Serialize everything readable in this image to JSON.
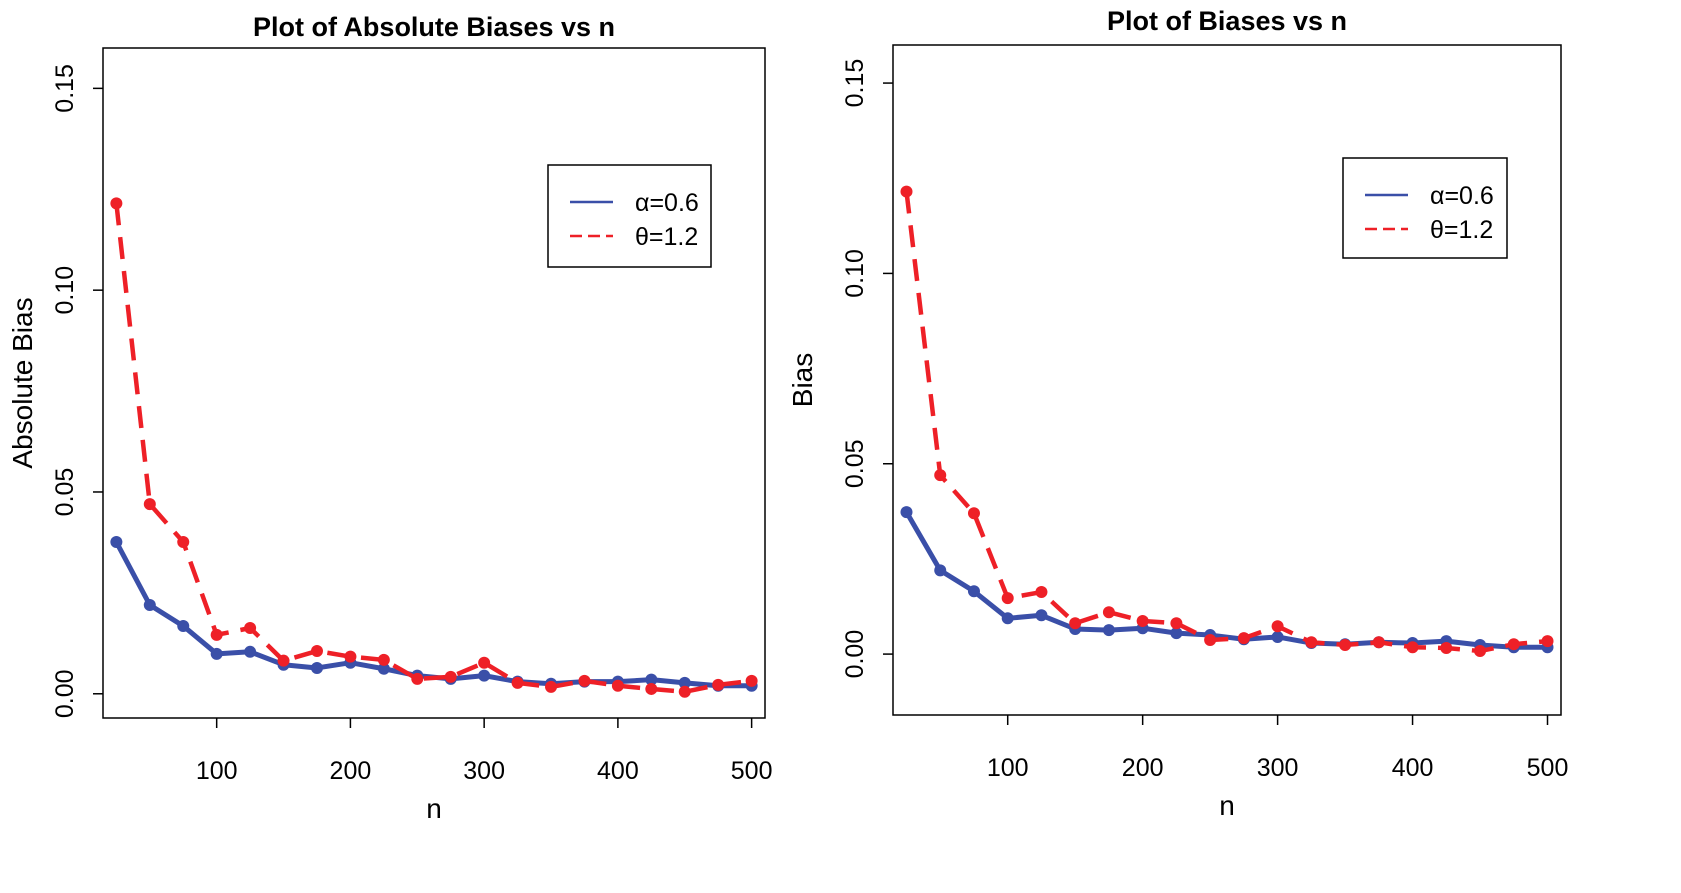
{
  "colors": {
    "alpha": "#3a4fa8",
    "theta": "#ee2027"
  },
  "chart_data": [
    {
      "type": "line",
      "title": "Plot of Absolute Biases vs n",
      "xlabel": "n",
      "ylabel": "Absolute Bias",
      "xlim": [
        15,
        510
      ],
      "ylim": [
        -0.006,
        0.16
      ],
      "xticks": [
        100,
        200,
        300,
        400,
        500
      ],
      "yticks": [
        0.0,
        0.05,
        0.1,
        0.15
      ],
      "ytick_labels": [
        "0.00",
        "0.05",
        "0.10",
        "0.15"
      ],
      "legend_position": "top-right",
      "x": [
        25,
        50,
        75,
        100,
        125,
        150,
        175,
        200,
        225,
        250,
        275,
        300,
        325,
        350,
        375,
        400,
        425,
        450,
        475,
        500
      ],
      "series": [
        {
          "name": "α=0.6",
          "style": "solid",
          "values": [
            0.0376,
            0.022,
            0.0168,
            0.0099,
            0.0104,
            0.0072,
            0.0064,
            0.0077,
            0.0062,
            0.0045,
            0.0037,
            0.0045,
            0.003,
            0.0025,
            0.003,
            0.003,
            0.0035,
            0.0027,
            0.002,
            0.002
          ]
        },
        {
          "name": "θ=1.2",
          "style": "dashed",
          "values": [
            0.1215,
            0.047,
            0.0376,
            0.0146,
            0.0163,
            0.0082,
            0.0106,
            0.0092,
            0.0084,
            0.0037,
            0.0042,
            0.0077,
            0.0027,
            0.0017,
            0.0032,
            0.002,
            0.0012,
            0.0005,
            0.0022,
            0.0032
          ]
        }
      ]
    },
    {
      "type": "line",
      "title": "Plot of Biases vs n",
      "xlabel": "n",
      "ylabel": "Bias",
      "xlim": [
        15,
        510
      ],
      "ylim": [
        -0.016,
        0.16
      ],
      "xticks": [
        100,
        200,
        300,
        400,
        500
      ],
      "yticks": [
        0.0,
        0.05,
        0.1,
        0.15
      ],
      "ytick_labels": [
        "0.00",
        "0.05",
        "0.10",
        "0.15"
      ],
      "legend_position": "top-right",
      "x": [
        25,
        50,
        75,
        100,
        125,
        150,
        175,
        200,
        225,
        250,
        275,
        300,
        325,
        350,
        375,
        400,
        425,
        450,
        475,
        500
      ],
      "series": [
        {
          "name": "α=0.6",
          "style": "solid",
          "values": [
            0.0373,
            0.022,
            0.0165,
            0.0094,
            0.0102,
            0.0066,
            0.0063,
            0.0068,
            0.0055,
            0.005,
            0.0039,
            0.0045,
            0.0029,
            0.0026,
            0.0031,
            0.0029,
            0.0034,
            0.0024,
            0.0018,
            0.0018
          ]
        },
        {
          "name": "θ=1.2",
          "style": "dashed",
          "values": [
            0.1215,
            0.047,
            0.037,
            0.0147,
            0.0163,
            0.0081,
            0.011,
            0.0087,
            0.0081,
            0.0037,
            0.0042,
            0.0073,
            0.0031,
            0.0024,
            0.0031,
            0.0018,
            0.0016,
            0.0008,
            0.0026,
            0.0034
          ]
        }
      ]
    }
  ]
}
